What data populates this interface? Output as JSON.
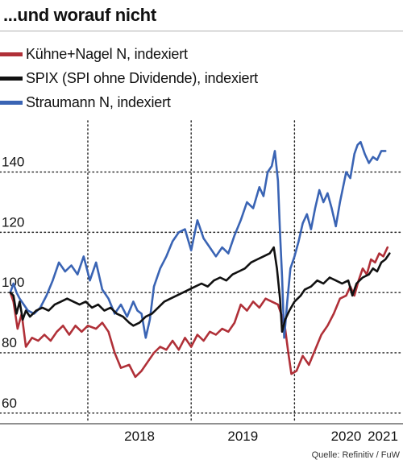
{
  "header": {
    "title": "...und worauf nicht"
  },
  "legend": [
    {
      "label": "Kühne+Nagel N, indexiert",
      "color": "#b03038"
    },
    {
      "label": "SPIX (SPI ohne Dividende), indexiert",
      "color": "#111111"
    },
    {
      "label": "Straumann N, indexiert",
      "color": "#3a64b4"
    }
  ],
  "source": "Quelle: Refinitiv / FuW",
  "chart_data": {
    "type": "line",
    "title": "...und worauf nicht",
    "xlabel": "",
    "ylabel": "",
    "x_ticks": [
      "2018",
      "2019",
      "2020",
      "2021"
    ],
    "y_ticks": [
      60,
      80,
      100,
      120,
      140
    ],
    "ylim": [
      57,
      157
    ],
    "xlim": [
      2017.15,
      2021.05
    ],
    "grid": true,
    "legend_position": "top-left",
    "series": [
      {
        "name": "Kühne+Nagel N, indexiert",
        "color": "#b03038",
        "points": [
          [
            2017.25,
            100
          ],
          [
            2017.28,
            97
          ],
          [
            2017.32,
            88
          ],
          [
            2017.36,
            93
          ],
          [
            2017.4,
            82
          ],
          [
            2017.46,
            85
          ],
          [
            2017.52,
            84
          ],
          [
            2017.58,
            86
          ],
          [
            2017.64,
            84
          ],
          [
            2017.7,
            87
          ],
          [
            2017.76,
            89
          ],
          [
            2017.82,
            86
          ],
          [
            2017.88,
            89
          ],
          [
            2017.94,
            87
          ],
          [
            2018.0,
            89
          ],
          [
            2018.08,
            88
          ],
          [
            2018.14,
            90
          ],
          [
            2018.2,
            87
          ],
          [
            2018.26,
            80
          ],
          [
            2018.32,
            75
          ],
          [
            2018.4,
            76
          ],
          [
            2018.46,
            72
          ],
          [
            2018.52,
            74
          ],
          [
            2018.58,
            77
          ],
          [
            2018.64,
            80
          ],
          [
            2018.7,
            82
          ],
          [
            2018.76,
            81
          ],
          [
            2018.82,
            84
          ],
          [
            2018.88,
            81
          ],
          [
            2018.94,
            85
          ],
          [
            2019.0,
            82
          ],
          [
            2019.06,
            86
          ],
          [
            2019.12,
            84
          ],
          [
            2019.18,
            87
          ],
          [
            2019.24,
            86
          ],
          [
            2019.3,
            88
          ],
          [
            2019.36,
            87
          ],
          [
            2019.42,
            90
          ],
          [
            2019.48,
            96
          ],
          [
            2019.54,
            94
          ],
          [
            2019.6,
            97
          ],
          [
            2019.66,
            95
          ],
          [
            2019.72,
            98
          ],
          [
            2019.78,
            97
          ],
          [
            2019.84,
            96
          ],
          [
            2019.88,
            92
          ],
          [
            2019.91,
            88
          ],
          [
            2019.94,
            80
          ],
          [
            2019.97,
            73
          ],
          [
            2020.02,
            74
          ],
          [
            2020.08,
            79
          ],
          [
            2020.14,
            76
          ],
          [
            2020.2,
            81
          ],
          [
            2020.26,
            86
          ],
          [
            2020.32,
            89
          ],
          [
            2020.38,
            93
          ],
          [
            2020.44,
            98
          ],
          [
            2020.5,
            99
          ],
          [
            2020.54,
            102
          ],
          [
            2020.58,
            99
          ],
          [
            2020.62,
            104
          ],
          [
            2020.66,
            108
          ],
          [
            2020.7,
            106
          ],
          [
            2020.74,
            111
          ],
          [
            2020.78,
            110
          ],
          [
            2020.82,
            113
          ],
          [
            2020.86,
            112
          ],
          [
            2020.9,
            115
          ]
        ]
      },
      {
        "name": "SPIX (SPI ohne Dividende), indexiert",
        "color": "#111111",
        "points": [
          [
            2017.25,
            100
          ],
          [
            2017.28,
            99
          ],
          [
            2017.31,
            93
          ],
          [
            2017.34,
            97
          ],
          [
            2017.37,
            91
          ],
          [
            2017.4,
            94
          ],
          [
            2017.44,
            92
          ],
          [
            2017.5,
            94
          ],
          [
            2017.56,
            95
          ],
          [
            2017.62,
            94
          ],
          [
            2017.68,
            96
          ],
          [
            2017.74,
            97
          ],
          [
            2017.8,
            98
          ],
          [
            2017.86,
            97
          ],
          [
            2017.92,
            96
          ],
          [
            2017.98,
            97
          ],
          [
            2018.04,
            95
          ],
          [
            2018.1,
            96
          ],
          [
            2018.16,
            94
          ],
          [
            2018.22,
            95
          ],
          [
            2018.28,
            93
          ],
          [
            2018.34,
            92
          ],
          [
            2018.4,
            90
          ],
          [
            2018.44,
            89
          ],
          [
            2018.5,
            90
          ],
          [
            2018.56,
            92
          ],
          [
            2018.62,
            93
          ],
          [
            2018.68,
            95
          ],
          [
            2018.74,
            97
          ],
          [
            2018.8,
            98
          ],
          [
            2018.86,
            99
          ],
          [
            2018.92,
            100
          ],
          [
            2018.98,
            101
          ],
          [
            2019.04,
            102
          ],
          [
            2019.1,
            103
          ],
          [
            2019.16,
            102
          ],
          [
            2019.22,
            104
          ],
          [
            2019.28,
            105
          ],
          [
            2019.34,
            104
          ],
          [
            2019.4,
            106
          ],
          [
            2019.46,
            107
          ],
          [
            2019.52,
            108
          ],
          [
            2019.58,
            110
          ],
          [
            2019.64,
            111
          ],
          [
            2019.7,
            112
          ],
          [
            2019.76,
            113
          ],
          [
            2019.8,
            115
          ],
          [
            2019.83,
            108
          ],
          [
            2019.86,
            98
          ],
          [
            2019.88,
            87
          ],
          [
            2019.91,
            91
          ],
          [
            2019.95,
            94
          ],
          [
            2020.0,
            97
          ],
          [
            2020.06,
            99
          ],
          [
            2020.1,
            101
          ],
          [
            2020.16,
            102
          ],
          [
            2020.22,
            104
          ],
          [
            2020.28,
            103
          ],
          [
            2020.34,
            105
          ],
          [
            2020.4,
            104
          ],
          [
            2020.46,
            103
          ],
          [
            2020.52,
            104
          ],
          [
            2020.56,
            99
          ],
          [
            2020.6,
            103
          ],
          [
            2020.66,
            105
          ],
          [
            2020.72,
            106
          ],
          [
            2020.76,
            108
          ],
          [
            2020.8,
            107
          ],
          [
            2020.84,
            110
          ],
          [
            2020.88,
            111
          ],
          [
            2020.92,
            113
          ]
        ]
      },
      {
        "name": "Straumann N, indexiert",
        "color": "#3a64b4",
        "points": [
          [
            2017.25,
            100
          ],
          [
            2017.28,
            103
          ],
          [
            2017.31,
            100
          ],
          [
            2017.34,
            98
          ],
          [
            2017.38,
            96
          ],
          [
            2017.42,
            94
          ],
          [
            2017.48,
            93
          ],
          [
            2017.54,
            95
          ],
          [
            2017.6,
            99
          ],
          [
            2017.66,
            104
          ],
          [
            2017.72,
            110
          ],
          [
            2017.78,
            107
          ],
          [
            2017.84,
            109
          ],
          [
            2017.9,
            106
          ],
          [
            2017.96,
            112
          ],
          [
            2018.02,
            104
          ],
          [
            2018.08,
            110
          ],
          [
            2018.14,
            101
          ],
          [
            2018.2,
            98
          ],
          [
            2018.26,
            93
          ],
          [
            2018.32,
            96
          ],
          [
            2018.38,
            92
          ],
          [
            2018.44,
            97
          ],
          [
            2018.48,
            94
          ],
          [
            2018.52,
            93
          ],
          [
            2018.56,
            85
          ],
          [
            2018.6,
            91
          ],
          [
            2018.64,
            102
          ],
          [
            2018.7,
            108
          ],
          [
            2018.76,
            112
          ],
          [
            2018.82,
            117
          ],
          [
            2018.88,
            120
          ],
          [
            2018.94,
            121
          ],
          [
            2019.0,
            114
          ],
          [
            2019.06,
            124
          ],
          [
            2019.12,
            118
          ],
          [
            2019.18,
            115
          ],
          [
            2019.24,
            112
          ],
          [
            2019.3,
            115
          ],
          [
            2019.36,
            113
          ],
          [
            2019.42,
            119
          ],
          [
            2019.48,
            124
          ],
          [
            2019.54,
            130
          ],
          [
            2019.6,
            128
          ],
          [
            2019.66,
            135
          ],
          [
            2019.7,
            132
          ],
          [
            2019.74,
            140
          ],
          [
            2019.78,
            142
          ],
          [
            2019.81,
            147
          ],
          [
            2019.84,
            137
          ],
          [
            2019.86,
            120
          ],
          [
            2019.88,
            105
          ],
          [
            2019.9,
            85
          ],
          [
            2019.93,
            97
          ],
          [
            2019.96,
            108
          ],
          [
            2020.0,
            112
          ],
          [
            2020.04,
            117
          ],
          [
            2020.08,
            123
          ],
          [
            2020.12,
            126
          ],
          [
            2020.16,
            121
          ],
          [
            2020.2,
            128
          ],
          [
            2020.24,
            134
          ],
          [
            2020.28,
            130
          ],
          [
            2020.32,
            133
          ],
          [
            2020.36,
            128
          ],
          [
            2020.4,
            122
          ],
          [
            2020.44,
            130
          ],
          [
            2020.5,
            140
          ],
          [
            2020.54,
            138
          ],
          [
            2020.58,
            146
          ],
          [
            2020.61,
            149
          ],
          [
            2020.64,
            150
          ],
          [
            2020.68,
            146
          ],
          [
            2020.72,
            143
          ],
          [
            2020.76,
            145
          ],
          [
            2020.8,
            144
          ],
          [
            2020.84,
            147
          ],
          [
            2020.88,
            147
          ]
        ]
      }
    ]
  }
}
